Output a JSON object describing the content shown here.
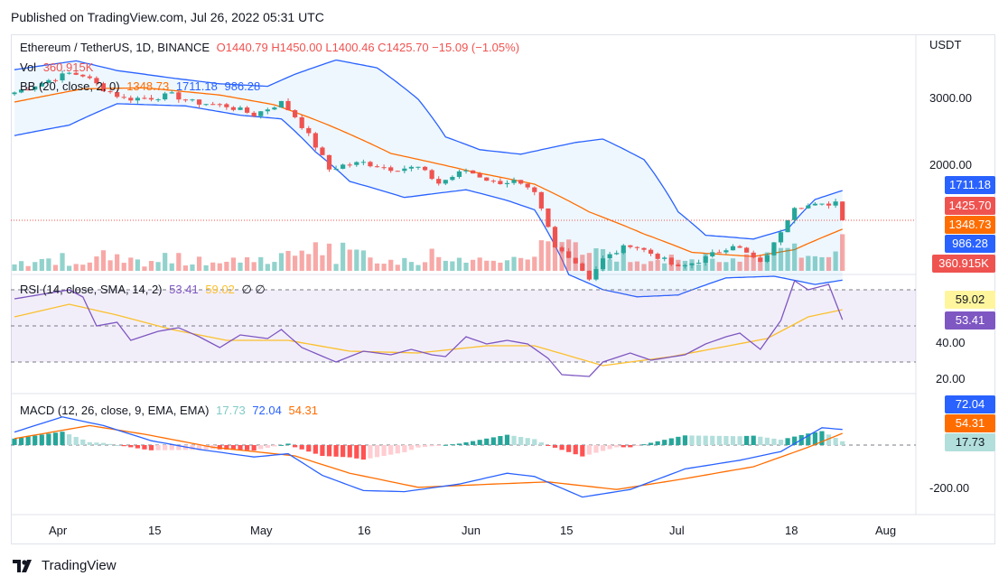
{
  "header": {
    "published": "Published on TradingView.com, Jul 26, 2022 05:31 UTC"
  },
  "footer": {
    "brand": "TradingView"
  },
  "legend": {
    "symbol": "Ethereum / TetherUS, 1D, BINANCE",
    "ohlc": "O1440.79  H1450.00  L1400.46  C1425.70  −15.09 (−1.05%)",
    "vol_label": "Vol",
    "vol_value": "360.915K",
    "bb_label": "BB (20, close, 2, 0)",
    "bb_basis": "1348.73",
    "bb_upper": "1711.18",
    "bb_lower": "986.28",
    "rsi_label": "RSI (14, close, SMA, 14, 2)",
    "rsi_value": "53.41",
    "rsi_sma": "59.02",
    "rsi_extra": "∅  ∅",
    "macd_label": "MACD (12, 26, close, 9, EMA, EMA)",
    "macd_hist": "17.73",
    "macd_line": "72.04",
    "macd_signal": "54.31"
  },
  "axis": {
    "currency": "USDT",
    "price_ticks": [
      "3000.00",
      "2000.00"
    ],
    "rsi_ticks": [
      "40.00",
      "20.00"
    ],
    "macd_ticks": [
      "-200.00"
    ],
    "x_ticks": [
      "Apr",
      "15",
      "May",
      "16",
      "Jun",
      "15",
      "Jul",
      "18",
      "Aug"
    ]
  },
  "tags": {
    "bb_upper": "1711.18",
    "close": "1425.70",
    "bb_basis": "1348.73",
    "bb_lower": "986.28",
    "volume": "360.915K",
    "rsi_sma": "59.02",
    "rsi": "53.41",
    "macd_line": "72.04",
    "macd_signal": "54.31",
    "macd_hist": "17.73"
  },
  "colors": {
    "up": "#26a69a",
    "down": "#ef5350",
    "bb_band": "#2962ff",
    "bb_basis": "#ff6d00",
    "rsi": "#7e57c2",
    "rsi_sma": "#fbc02d",
    "macd": "#2962ff",
    "signal": "#ff6d00"
  },
  "chart_data": [
    {
      "type": "candlestick",
      "title": "Ethereum / TetherUS, 1D, BINANCE",
      "x_start": "2022-03-26",
      "price_scale": "log",
      "ylim": [
        840,
        4000
      ],
      "anchors": [
        [
          "2022-03-26",
          3130
        ],
        [
          "2022-04-03",
          3520
        ],
        [
          "2022-04-05",
          3480
        ],
        [
          "2022-04-08",
          3200
        ],
        [
          "2022-04-11",
          3010
        ],
        [
          "2022-04-15",
          3030
        ],
        [
          "2022-04-18",
          3080
        ],
        [
          "2022-04-21",
          2950
        ],
        [
          "2022-04-26",
          2880
        ],
        [
          "2022-04-30",
          2730
        ],
        [
          "2022-05-04",
          2940
        ],
        [
          "2022-05-06",
          2700
        ],
        [
          "2022-05-09",
          2250
        ],
        [
          "2022-05-11",
          1950
        ],
        [
          "2022-05-13",
          2000
        ],
        [
          "2022-05-16",
          2030
        ],
        [
          "2022-05-20",
          1960
        ],
        [
          "2022-05-24",
          1970
        ],
        [
          "2022-05-27",
          1790
        ],
        [
          "2022-05-31",
          1940
        ],
        [
          "2022-06-04",
          1800
        ],
        [
          "2022-06-07",
          1810
        ],
        [
          "2022-06-10",
          1670
        ],
        [
          "2022-06-13",
          1200
        ],
        [
          "2022-06-15",
          1150
        ],
        [
          "2022-06-18",
          1000
        ],
        [
          "2022-06-20",
          1120
        ],
        [
          "2022-06-24",
          1230
        ],
        [
          "2022-06-28",
          1140
        ],
        [
          "2022-07-01",
          1060
        ],
        [
          "2022-07-05",
          1130
        ],
        [
          "2022-07-09",
          1230
        ],
        [
          "2022-07-13",
          1090
        ],
        [
          "2022-07-15",
          1230
        ],
        [
          "2022-07-18",
          1560
        ],
        [
          "2022-07-22",
          1560
        ],
        [
          "2022-07-24",
          1600
        ],
        [
          "2022-07-25",
          1426
        ]
      ],
      "bb_upper": [
        [
          "2022-03-26",
          3600
        ],
        [
          "2022-04-04",
          3800
        ],
        [
          "2022-04-10",
          3580
        ],
        [
          "2022-04-18",
          3420
        ],
        [
          "2022-04-25",
          3300
        ],
        [
          "2022-05-02",
          3250
        ],
        [
          "2022-05-06",
          3500
        ],
        [
          "2022-05-12",
          3820
        ],
        [
          "2022-05-18",
          3640
        ],
        [
          "2022-05-24",
          3000
        ],
        [
          "2022-05-28",
          2380
        ],
        [
          "2022-06-02",
          2200
        ],
        [
          "2022-06-08",
          2140
        ],
        [
          "2022-06-16",
          2300
        ],
        [
          "2022-06-20",
          2350
        ],
        [
          "2022-06-26",
          2070
        ],
        [
          "2022-07-01",
          1500
        ],
        [
          "2022-07-05",
          1300
        ],
        [
          "2022-07-12",
          1270
        ],
        [
          "2022-07-17",
          1350
        ],
        [
          "2022-07-21",
          1620
        ],
        [
          "2022-07-25",
          1711
        ]
      ],
      "bb_basis": [
        [
          "2022-03-26",
          2950
        ],
        [
          "2022-04-05",
          3200
        ],
        [
          "2022-04-14",
          3220
        ],
        [
          "2022-04-25",
          3080
        ],
        [
          "2022-05-03",
          2900
        ],
        [
          "2022-05-10",
          2600
        ],
        [
          "2022-05-20",
          2150
        ],
        [
          "2022-06-01",
          1920
        ],
        [
          "2022-06-10",
          1780
        ],
        [
          "2022-06-18",
          1500
        ],
        [
          "2022-06-26",
          1310
        ],
        [
          "2022-07-03",
          1170
        ],
        [
          "2022-07-12",
          1140
        ],
        [
          "2022-07-18",
          1190
        ],
        [
          "2022-07-25",
          1349
        ]
      ],
      "bb_lower": [
        [
          "2022-03-26",
          2400
        ],
        [
          "2022-04-03",
          2560
        ],
        [
          "2022-04-10",
          2920
        ],
        [
          "2022-04-20",
          2880
        ],
        [
          "2022-04-28",
          2720
        ],
        [
          "2022-05-04",
          2660
        ],
        [
          "2022-05-09",
          2170
        ],
        [
          "2022-05-14",
          1810
        ],
        [
          "2022-05-22",
          1640
        ],
        [
          "2022-05-31",
          1720
        ],
        [
          "2022-06-06",
          1610
        ],
        [
          "2022-06-10",
          1520
        ],
        [
          "2022-06-15",
          1020
        ],
        [
          "2022-06-20",
          930
        ],
        [
          "2022-06-25",
          890
        ],
        [
          "2022-07-01",
          900
        ],
        [
          "2022-07-08",
          1000
        ],
        [
          "2022-07-15",
          1010
        ],
        [
          "2022-07-21",
          960
        ],
        [
          "2022-07-25",
          986
        ]
      ],
      "last_close": 1425.7
    },
    {
      "type": "bar",
      "title": "Vol",
      "x_start": "2022-03-26",
      "description_values_relative": "daily volume, last 360.915K",
      "last": "360.915K"
    },
    {
      "type": "line",
      "title": "RSI (14, close, SMA, 14, 2)",
      "ylim": [
        10,
        80
      ],
      "bands": [
        70,
        30
      ],
      "series": [
        {
          "name": "RSI",
          "anchors": [
            [
              "2022-03-26",
              65
            ],
            [
              "2022-04-03",
              70
            ],
            [
              "2022-04-05",
              66
            ],
            [
              "2022-04-07",
              50
            ],
            [
              "2022-04-10",
              52
            ],
            [
              "2022-04-12",
              42
            ],
            [
              "2022-04-16",
              47
            ],
            [
              "2022-04-19",
              49
            ],
            [
              "2022-04-22",
              44
            ],
            [
              "2022-04-25",
              38
            ],
            [
              "2022-04-28",
              45
            ],
            [
              "2022-05-02",
              43
            ],
            [
              "2022-05-04",
              48
            ],
            [
              "2022-05-07",
              38
            ],
            [
              "2022-05-12",
              30
            ],
            [
              "2022-05-16",
              36
            ],
            [
              "2022-05-20",
              34
            ],
            [
              "2022-05-23",
              37
            ],
            [
              "2022-05-26",
              34
            ],
            [
              "2022-05-28",
              33
            ],
            [
              "2022-05-31",
              44
            ],
            [
              "2022-06-03",
              40
            ],
            [
              "2022-06-06",
              42
            ],
            [
              "2022-06-09",
              40
            ],
            [
              "2022-06-12",
              32
            ],
            [
              "2022-06-14",
              23
            ],
            [
              "2022-06-18",
              22
            ],
            [
              "2022-06-20",
              30
            ],
            [
              "2022-06-24",
              35
            ],
            [
              "2022-06-27",
              31
            ],
            [
              "2022-07-02",
              34
            ],
            [
              "2022-07-05",
              40
            ],
            [
              "2022-07-08",
              44
            ],
            [
              "2022-07-10",
              46
            ],
            [
              "2022-07-13",
              37
            ],
            [
              "2022-07-16",
              53
            ],
            [
              "2022-07-18",
              75
            ],
            [
              "2022-07-20",
              70
            ],
            [
              "2022-07-23",
              73
            ],
            [
              "2022-07-25",
              53.41
            ]
          ]
        },
        {
          "name": "RSI SMA",
          "anchors": [
            [
              "2022-03-26",
              55
            ],
            [
              "2022-04-03",
              62
            ],
            [
              "2022-04-10",
              56
            ],
            [
              "2022-04-18",
              48
            ],
            [
              "2022-04-26",
              42
            ],
            [
              "2022-05-05",
              42
            ],
            [
              "2022-05-14",
              36
            ],
            [
              "2022-05-24",
              35
            ],
            [
              "2022-06-03",
              39
            ],
            [
              "2022-06-10",
              39
            ],
            [
              "2022-06-20",
              28
            ],
            [
              "2022-06-30",
              33
            ],
            [
              "2022-07-07",
              38
            ],
            [
              "2022-07-14",
              43
            ],
            [
              "2022-07-20",
              55
            ],
            [
              "2022-07-25",
              59.02
            ]
          ]
        }
      ]
    },
    {
      "type": "line",
      "title": "MACD (12, 26, close, 9, EMA, EMA)",
      "ylim": [
        -260,
        160
      ],
      "series": [
        {
          "name": "MACD",
          "anchors": [
            [
              "2022-03-26",
              60
            ],
            [
              "2022-04-02",
              130
            ],
            [
              "2022-04-08",
              90
            ],
            [
              "2022-04-15",
              20
            ],
            [
              "2022-04-22",
              -20
            ],
            [
              "2022-04-30",
              -55
            ],
            [
              "2022-05-05",
              -40
            ],
            [
              "2022-05-10",
              -140
            ],
            [
              "2022-05-16",
              -210
            ],
            [
              "2022-05-22",
              -215
            ],
            [
              "2022-05-30",
              -180
            ],
            [
              "2022-06-06",
              -130
            ],
            [
              "2022-06-10",
              -145
            ],
            [
              "2022-06-17",
              -240
            ],
            [
              "2022-06-24",
              -205
            ],
            [
              "2022-07-02",
              -110
            ],
            [
              "2022-07-10",
              -70
            ],
            [
              "2022-07-16",
              -30
            ],
            [
              "2022-07-22",
              80
            ],
            [
              "2022-07-25",
              72.04
            ]
          ]
        },
        {
          "name": "Signal",
          "anchors": [
            [
              "2022-03-26",
              30
            ],
            [
              "2022-04-06",
              90
            ],
            [
              "2022-04-14",
              50
            ],
            [
              "2022-04-24",
              -10
            ],
            [
              "2022-05-06",
              -50
            ],
            [
              "2022-05-14",
              -130
            ],
            [
              "2022-05-24",
              -195
            ],
            [
              "2022-06-04",
              -180
            ],
            [
              "2022-06-12",
              -170
            ],
            [
              "2022-06-22",
              -205
            ],
            [
              "2022-07-01",
              -160
            ],
            [
              "2022-07-12",
              -100
            ],
            [
              "2022-07-20",
              -10
            ],
            [
              "2022-07-25",
              54.31
            ]
          ]
        }
      ],
      "histogram_last": 17.73
    }
  ]
}
